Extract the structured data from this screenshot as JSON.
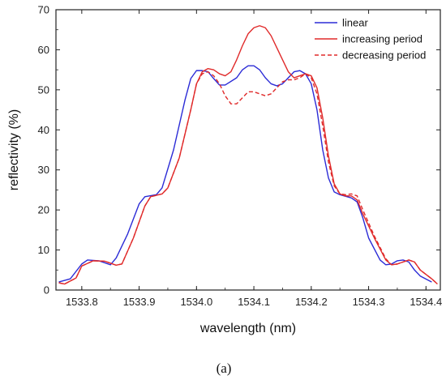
{
  "chart_data": {
    "type": "line",
    "xlabel": "wavelength (nm)",
    "ylabel": "reflectivity (%)",
    "panel_label": "(a)",
    "xlim": [
      1533.755,
      1534.425
    ],
    "ylim": [
      0,
      70
    ],
    "x_ticks": [
      1533.8,
      1533.9,
      1534.0,
      1534.1,
      1534.2,
      1534.3,
      1534.4
    ],
    "x_tick_labels": [
      "1533.8",
      "1533.9",
      "1534.0",
      "1534.1",
      "1534.2",
      "1534.3",
      "1534.4"
    ],
    "y_ticks": [
      0,
      10,
      20,
      30,
      40,
      50,
      60,
      70
    ],
    "y_tick_labels": [
      "0",
      "10",
      "20",
      "30",
      "40",
      "50",
      "60",
      "70"
    ],
    "grid": false,
    "legend_position": "top-right",
    "series": [
      {
        "name": "linear",
        "color": "#2b2bd6",
        "dash": "solid",
        "points": [
          [
            1533.76,
            2.0
          ],
          [
            1533.78,
            2.8
          ],
          [
            1533.8,
            6.5
          ],
          [
            1533.81,
            7.5
          ],
          [
            1533.83,
            7.3
          ],
          [
            1533.85,
            6.3
          ],
          [
            1533.86,
            8.0
          ],
          [
            1533.88,
            14.0
          ],
          [
            1533.9,
            21.5
          ],
          [
            1533.91,
            23.3
          ],
          [
            1533.93,
            23.8
          ],
          [
            1533.94,
            25.5
          ],
          [
            1533.96,
            35.0
          ],
          [
            1533.98,
            47.5
          ],
          [
            1533.99,
            52.8
          ],
          [
            1534.0,
            54.8
          ],
          [
            1534.01,
            54.8
          ],
          [
            1534.02,
            54.5
          ],
          [
            1534.03,
            52.8
          ],
          [
            1534.04,
            51.2
          ],
          [
            1534.05,
            51.2
          ],
          [
            1534.07,
            53.0
          ],
          [
            1534.08,
            55.0
          ],
          [
            1534.09,
            56.0
          ],
          [
            1534.1,
            56.0
          ],
          [
            1534.11,
            55.0
          ],
          [
            1534.12,
            53.0
          ],
          [
            1534.13,
            51.5
          ],
          [
            1534.14,
            51.0
          ],
          [
            1534.15,
            51.5
          ],
          [
            1534.16,
            53.0
          ],
          [
            1534.17,
            54.5
          ],
          [
            1534.18,
            54.8
          ],
          [
            1534.19,
            54.0
          ],
          [
            1534.2,
            51.5
          ],
          [
            1534.21,
            45.0
          ],
          [
            1534.22,
            35.0
          ],
          [
            1534.23,
            28.0
          ],
          [
            1534.24,
            24.5
          ],
          [
            1534.25,
            23.8
          ],
          [
            1534.27,
            23.0
          ],
          [
            1534.28,
            22.0
          ],
          [
            1534.29,
            18.0
          ],
          [
            1534.3,
            13.0
          ],
          [
            1534.32,
            7.5
          ],
          [
            1534.33,
            6.3
          ],
          [
            1534.34,
            6.5
          ],
          [
            1534.35,
            7.3
          ],
          [
            1534.36,
            7.5
          ],
          [
            1534.37,
            7.0
          ],
          [
            1534.38,
            5.0
          ],
          [
            1534.39,
            3.5
          ],
          [
            1534.41,
            2.0
          ]
        ]
      },
      {
        "name": "increasing period",
        "color": "#e02a2a",
        "dash": "solid",
        "points": [
          [
            1533.76,
            1.8
          ],
          [
            1533.77,
            1.5
          ],
          [
            1533.79,
            3.0
          ],
          [
            1533.8,
            6.0
          ],
          [
            1533.82,
            7.3
          ],
          [
            1533.84,
            7.2
          ],
          [
            1533.86,
            6.2
          ],
          [
            1533.87,
            6.5
          ],
          [
            1533.89,
            13.0
          ],
          [
            1533.91,
            21.0
          ],
          [
            1533.92,
            23.3
          ],
          [
            1533.94,
            24.0
          ],
          [
            1533.95,
            25.5
          ],
          [
            1533.97,
            33.0
          ],
          [
            1533.99,
            45.0
          ],
          [
            1534.0,
            51.5
          ],
          [
            1534.01,
            54.5
          ],
          [
            1534.02,
            55.3
          ],
          [
            1534.03,
            55.0
          ],
          [
            1534.04,
            54.0
          ],
          [
            1534.05,
            53.5
          ],
          [
            1534.06,
            54.5
          ],
          [
            1534.07,
            57.5
          ],
          [
            1534.08,
            61.0
          ],
          [
            1534.09,
            64.0
          ],
          [
            1534.1,
            65.5
          ],
          [
            1534.11,
            66.0
          ],
          [
            1534.12,
            65.5
          ],
          [
            1534.13,
            63.5
          ],
          [
            1534.14,
            60.5
          ],
          [
            1534.15,
            57.5
          ],
          [
            1534.16,
            54.5
          ],
          [
            1534.17,
            53.0
          ],
          [
            1534.18,
            53.5
          ],
          [
            1534.19,
            54.0
          ],
          [
            1534.2,
            53.5
          ],
          [
            1534.21,
            50.5
          ],
          [
            1534.22,
            43.0
          ],
          [
            1534.23,
            33.5
          ],
          [
            1534.24,
            26.5
          ],
          [
            1534.25,
            24.0
          ],
          [
            1534.26,
            23.5
          ],
          [
            1534.27,
            23.5
          ],
          [
            1534.28,
            22.5
          ],
          [
            1534.29,
            19.0
          ],
          [
            1534.31,
            13.0
          ],
          [
            1534.33,
            7.5
          ],
          [
            1534.34,
            6.3
          ],
          [
            1534.35,
            6.5
          ],
          [
            1534.36,
            7.0
          ],
          [
            1534.37,
            7.5
          ],
          [
            1534.38,
            7.0
          ],
          [
            1534.39,
            5.0
          ],
          [
            1534.41,
            2.8
          ],
          [
            1534.42,
            1.5
          ]
        ]
      },
      {
        "name": "decreasing period",
        "color": "#e02a2a",
        "dash": "dashed",
        "points": [
          [
            1533.76,
            1.8
          ],
          [
            1533.77,
            1.5
          ],
          [
            1533.79,
            3.0
          ],
          [
            1533.8,
            6.0
          ],
          [
            1533.82,
            7.3
          ],
          [
            1533.84,
            7.2
          ],
          [
            1533.86,
            6.2
          ],
          [
            1533.87,
            6.5
          ],
          [
            1533.89,
            13.0
          ],
          [
            1533.91,
            21.0
          ],
          [
            1533.92,
            23.3
          ],
          [
            1533.94,
            24.0
          ],
          [
            1533.95,
            25.5
          ],
          [
            1533.97,
            33.0
          ],
          [
            1533.99,
            45.0
          ],
          [
            1534.0,
            51.5
          ],
          [
            1534.01,
            54.0
          ],
          [
            1534.02,
            54.5
          ],
          [
            1534.03,
            53.5
          ],
          [
            1534.04,
            51.5
          ],
          [
            1534.05,
            48.5
          ],
          [
            1534.06,
            46.5
          ],
          [
            1534.07,
            46.5
          ],
          [
            1534.08,
            48.0
          ],
          [
            1534.09,
            49.5
          ],
          [
            1534.1,
            49.5
          ],
          [
            1534.11,
            49.0
          ],
          [
            1534.12,
            48.5
          ],
          [
            1534.13,
            49.0
          ],
          [
            1534.14,
            50.5
          ],
          [
            1534.15,
            52.0
          ],
          [
            1534.16,
            52.5
          ],
          [
            1534.17,
            52.5
          ],
          [
            1534.18,
            53.0
          ],
          [
            1534.19,
            54.0
          ],
          [
            1534.2,
            53.0
          ],
          [
            1534.21,
            49.0
          ],
          [
            1534.22,
            41.0
          ],
          [
            1534.23,
            32.0
          ],
          [
            1534.24,
            26.0
          ],
          [
            1534.25,
            24.0
          ],
          [
            1534.26,
            23.8
          ],
          [
            1534.27,
            24.0
          ],
          [
            1534.28,
            23.5
          ],
          [
            1534.29,
            20.0
          ],
          [
            1534.31,
            13.5
          ],
          [
            1534.33,
            7.8
          ],
          [
            1534.34,
            6.3
          ],
          [
            1534.35,
            6.5
          ],
          [
            1534.36,
            7.0
          ],
          [
            1534.37,
            7.5
          ],
          [
            1534.38,
            7.0
          ],
          [
            1534.39,
            5.0
          ],
          [
            1534.41,
            2.8
          ],
          [
            1534.42,
            1.5
          ]
        ]
      }
    ]
  }
}
